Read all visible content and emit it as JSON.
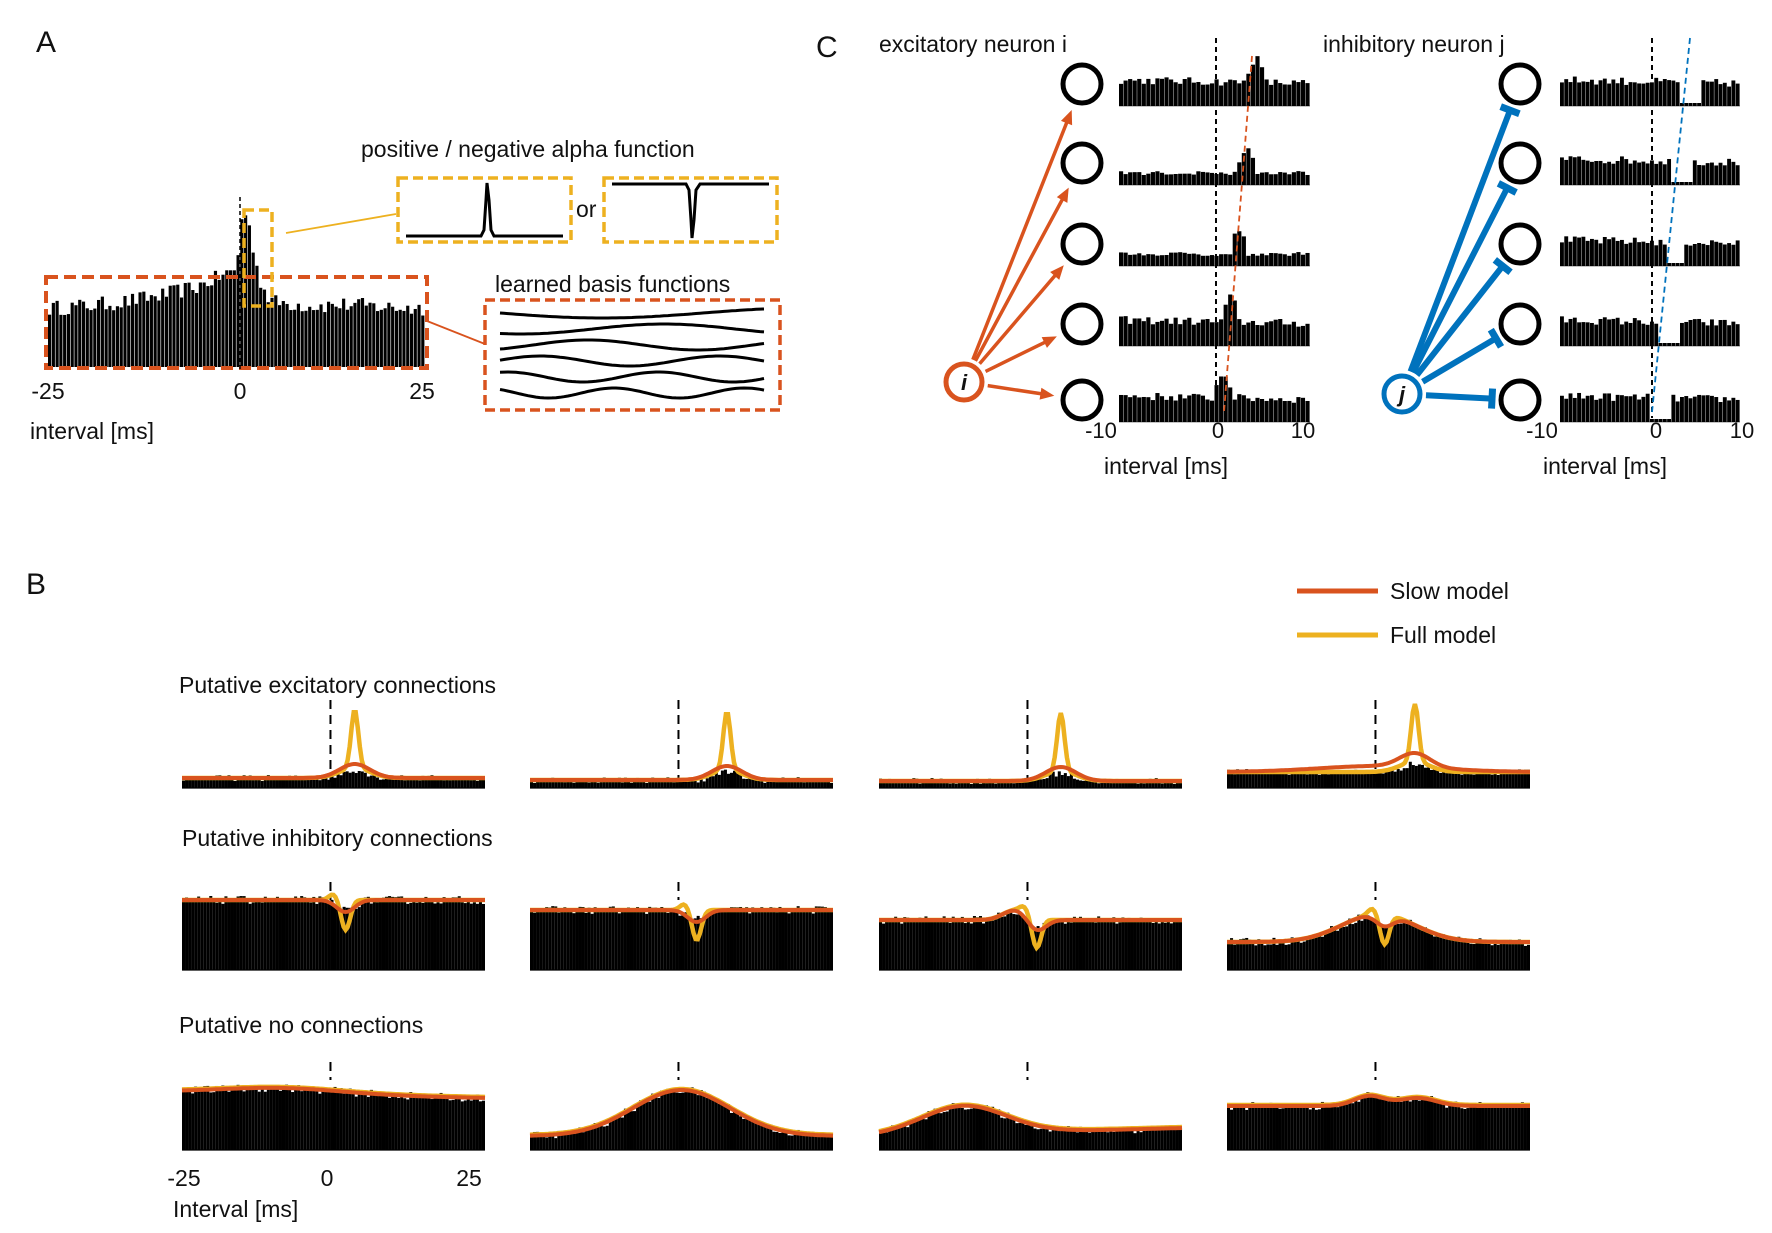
{
  "panels": {
    "a": {
      "label": "A",
      "tick_left": "-25",
      "tick_mid": "0",
      "tick_right": "25",
      "xlabel": "interval [ms]",
      "alpha_title": "positive / negative alpha function",
      "or_text": "or",
      "basis_title": "learned basis functions"
    },
    "b": {
      "label": "B"
    },
    "c": {
      "label": "C",
      "exc_title": "excitatory neuron i",
      "inh_title": "inhibitory neuron j",
      "exc_node": "i",
      "inh_node": "j",
      "tick_left": "-10",
      "tick_mid": "0",
      "tick_right": "10",
      "xlabel": "interval [ms]"
    }
  },
  "legend": {
    "slow": "Slow model",
    "full": "Full model"
  },
  "row_titles": {
    "exc": "Putative excitatory connections",
    "inh": "Putative inhibitory connections",
    "none": "Putative no connections"
  },
  "axis_b": {
    "tick_left": "-25",
    "tick_mid": "0",
    "tick_right": "25",
    "xlabel": "Interval [ms]"
  },
  "colors": {
    "slow": "#d9531e",
    "full": "#edb120",
    "inhibitory": "#0072bd",
    "bars": "#000000"
  },
  "chart_data": [
    {
      "type": "bar",
      "panel": "A",
      "title": "",
      "xlabel": "interval [ms]",
      "x_range": [
        -25,
        25
      ],
      "x_ticks": [
        -25,
        0,
        25
      ],
      "description_series": [
        {
          "name": "cross-correlogram",
          "bins_ms": [
            -25,
            -20,
            -15,
            -10,
            -5,
            -2,
            0,
            1,
            2,
            3,
            4,
            5,
            10,
            15,
            20,
            25
          ],
          "counts": [
            0.45,
            0.47,
            0.5,
            0.55,
            0.62,
            0.7,
            0.75,
            1.25,
            1.0,
            0.7,
            0.55,
            0.5,
            0.47,
            0.48,
            0.46,
            0.45
          ]
        }
      ]
    },
    {
      "type": "bar",
      "panel": "C",
      "title": "excitatory neuron i",
      "xlabel": "interval [ms]",
      "x_range": [
        -10,
        10
      ],
      "x_ticks": [
        -10,
        0,
        10
      ],
      "rows": [
        {
          "target": 1,
          "peak_ms": 4.0
        },
        {
          "target": 2,
          "peak_ms": 3.2
        },
        {
          "target": 3,
          "peak_ms": 2.4
        },
        {
          "target": 4,
          "peak_ms": 1.6
        },
        {
          "target": 5,
          "peak_ms": 0.8
        }
      ]
    },
    {
      "type": "bar",
      "panel": "C",
      "title": "inhibitory neuron j",
      "xlabel": "interval [ms]",
      "x_range": [
        -10,
        10
      ],
      "x_ticks": [
        -10,
        0,
        10
      ],
      "rows": [
        {
          "target": 1,
          "trough_ms": 3.6
        },
        {
          "target": 2,
          "trough_ms": 2.8
        },
        {
          "target": 3,
          "trough_ms": 2.0
        },
        {
          "target": 4,
          "trough_ms": 1.2
        },
        {
          "target": 5,
          "trough_ms": 0.4
        }
      ]
    },
    {
      "type": "line",
      "panel": "B",
      "xlabel": "Interval [ms]",
      "x_range": [
        -25,
        25
      ],
      "x_ticks": [
        -25,
        0,
        25
      ],
      "series": [
        {
          "name": "Slow model"
        },
        {
          "name": "Full model"
        }
      ],
      "rows": [
        {
          "title": "Putative excitatory connections",
          "kind": "excitatory",
          "n_pairs": 4
        },
        {
          "title": "Putative inhibitory connections",
          "kind": "inhibitory",
          "n_pairs": 4
        },
        {
          "title": "Putative no connections",
          "kind": "none",
          "n_pairs": 4
        }
      ]
    }
  ]
}
